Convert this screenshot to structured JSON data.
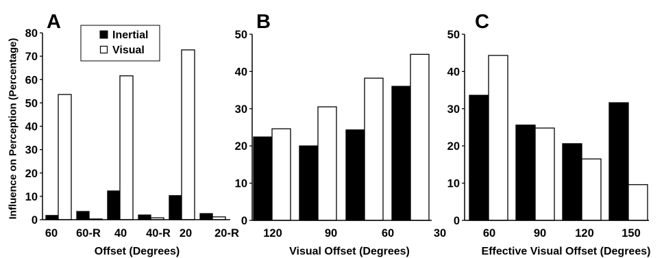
{
  "chart_data": [
    {
      "panel": "A",
      "type": "bar",
      "categories": [
        "60",
        "60-R",
        "40",
        "40-R",
        "20",
        "20-R"
      ],
      "series": [
        {
          "name": "Inertial",
          "color": "#000000",
          "values": [
            1.8,
            3.5,
            12.3,
            2.0,
            10.3,
            2.6
          ]
        },
        {
          "name": "Visual",
          "color": "#ffffff",
          "values": [
            53.6,
            0.3,
            61.6,
            0.8,
            72.7,
            1.2
          ]
        }
      ],
      "xlabel": "Offset (Degrees)",
      "ylabel": "Influence on Perception (Percentage)",
      "ylim": [
        0,
        80
      ],
      "yticks": [
        0,
        10,
        20,
        30,
        40,
        50,
        60,
        70,
        80
      ],
      "legend": "top",
      "grid": false
    },
    {
      "panel": "B",
      "type": "bar",
      "categories": [
        "120",
        "90",
        "60",
        "30"
      ],
      "series": [
        {
          "color": "#000000",
          "values": [
            22.4,
            20.0,
            24.3,
            36.0
          ]
        },
        {
          "color": "#ffffff",
          "values": [
            24.6,
            30.5,
            38.2,
            44.6
          ]
        }
      ],
      "xlabel": "Visual Offset (Degrees)",
      "ylim": [
        0,
        50
      ],
      "yticks": [
        0,
        10,
        20,
        30,
        40,
        50
      ],
      "grid": false
    },
    {
      "panel": "C",
      "type": "bar",
      "categories": [
        "60",
        "90",
        "120",
        "150"
      ],
      "series": [
        {
          "color": "#000000",
          "values": [
            33.6,
            25.6,
            20.6,
            31.6
          ]
        },
        {
          "color": "#ffffff",
          "values": [
            44.3,
            24.8,
            16.5,
            9.6
          ]
        }
      ],
      "xlabel": "Effective Visual Offset (Degrees)",
      "ylim": [
        0,
        50
      ],
      "yticks": [
        0,
        10,
        20,
        30,
        40,
        50
      ],
      "grid": false
    }
  ]
}
